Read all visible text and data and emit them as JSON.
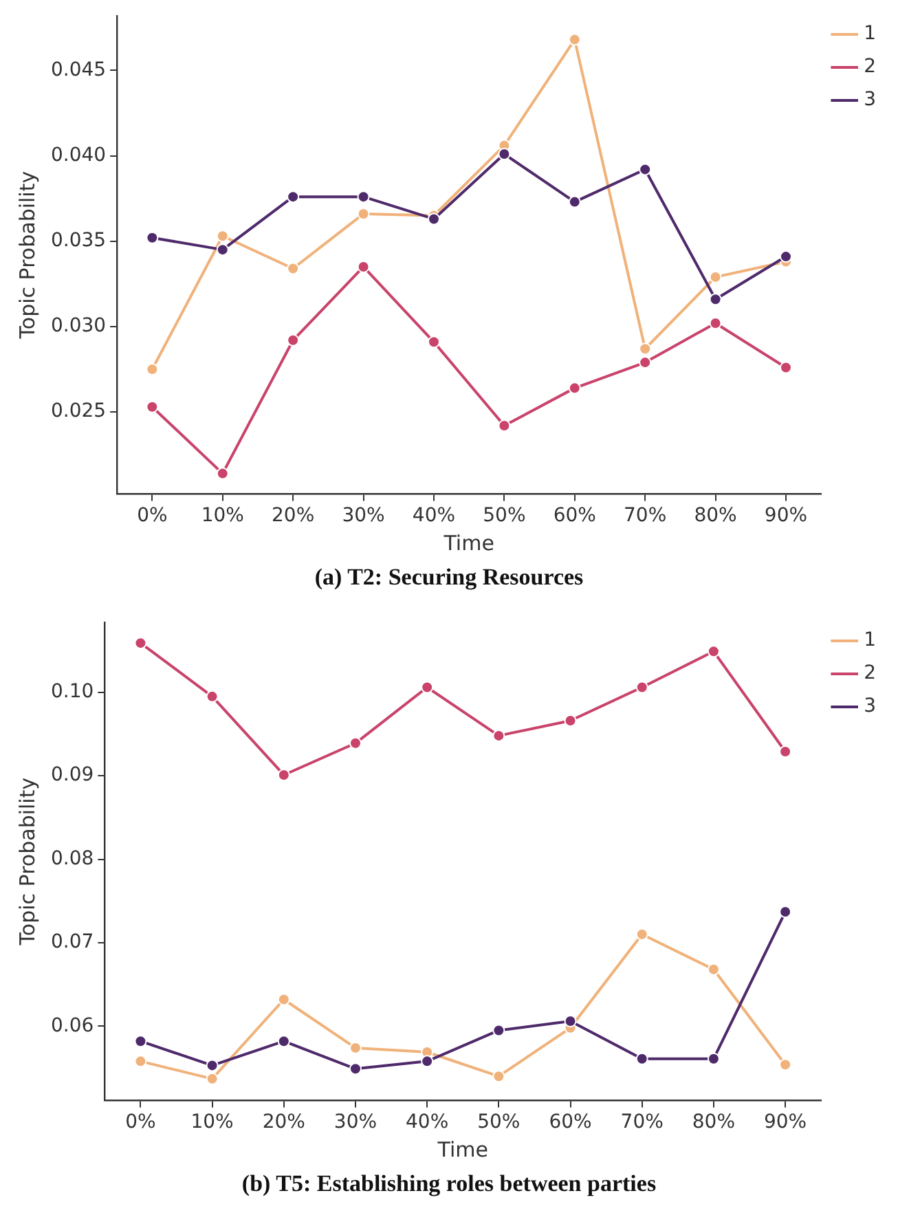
{
  "chart_data": [
    {
      "type": "line",
      "xlabel": "Time",
      "ylabel": "Topic Probability",
      "categories": [
        "0%",
        "10%",
        "20%",
        "30%",
        "40%",
        "50%",
        "60%",
        "70%",
        "80%",
        "90%"
      ],
      "series": [
        {
          "name": "1",
          "color": "#f0b27a",
          "values": [
            0.0275,
            0.0353,
            0.0334,
            0.0366,
            0.0365,
            0.0406,
            0.0468,
            0.0287,
            0.0329,
            0.0338
          ]
        },
        {
          "name": "2",
          "color": "#c9436b",
          "values": [
            0.0253,
            0.0214,
            0.0292,
            0.0335,
            0.0291,
            0.0242,
            0.0264,
            0.0279,
            0.0302,
            0.0276
          ]
        },
        {
          "name": "3",
          "color": "#4f2a6b",
          "values": [
            0.0352,
            0.0345,
            0.0376,
            0.0376,
            0.0363,
            0.0401,
            0.0373,
            0.0392,
            0.0316,
            0.0341
          ]
        }
      ],
      "ylim": [
        0.0202,
        0.0482
      ],
      "yticks": [
        {
          "value": 0.025,
          "label": "0.025"
        },
        {
          "value": 0.03,
          "label": "0.030"
        },
        {
          "value": 0.035,
          "label": "0.035"
        },
        {
          "value": 0.04,
          "label": "0.040"
        },
        {
          "value": 0.045,
          "label": "0.045"
        }
      ],
      "grid": false,
      "legend": "top right",
      "marker": "circle",
      "line_style": "solid",
      "annotations": [
        "(a) T2: Securing Resources"
      ]
    },
    {
      "type": "line",
      "xlabel": "Time",
      "ylabel": "Topic Probability",
      "categories": [
        "0%",
        "10%",
        "20%",
        "30%",
        "40%",
        "50%",
        "60%",
        "70%",
        "80%",
        "90%"
      ],
      "series": [
        {
          "name": "1",
          "color": "#f0b27a",
          "values": [
            0.0558,
            0.0537,
            0.0632,
            0.0574,
            0.0569,
            0.054,
            0.0598,
            0.071,
            0.0668,
            0.0554
          ]
        },
        {
          "name": "2",
          "color": "#c9436b",
          "values": [
            0.1059,
            0.0995,
            0.0901,
            0.0939,
            0.1006,
            0.0948,
            0.0966,
            0.1006,
            0.1049,
            0.0929
          ]
        },
        {
          "name": "3",
          "color": "#4f2a6b",
          "values": [
            0.0582,
            0.0553,
            0.0582,
            0.0549,
            0.0558,
            0.0595,
            0.0606,
            0.0561,
            0.0561,
            0.0737
          ]
        }
      ],
      "ylim": [
        0.0511,
        0.1084
      ],
      "yticks": [
        {
          "value": 0.06,
          "label": "0.06"
        },
        {
          "value": 0.07,
          "label": "0.07"
        },
        {
          "value": 0.08,
          "label": "0.08"
        },
        {
          "value": 0.09,
          "label": "0.09"
        },
        {
          "value": 0.1,
          "label": "0.10"
        }
      ],
      "grid": false,
      "legend": "top right",
      "marker": "circle",
      "line_style": "solid",
      "annotations": [
        "(b) T5: Establishing roles between parties"
      ]
    }
  ]
}
